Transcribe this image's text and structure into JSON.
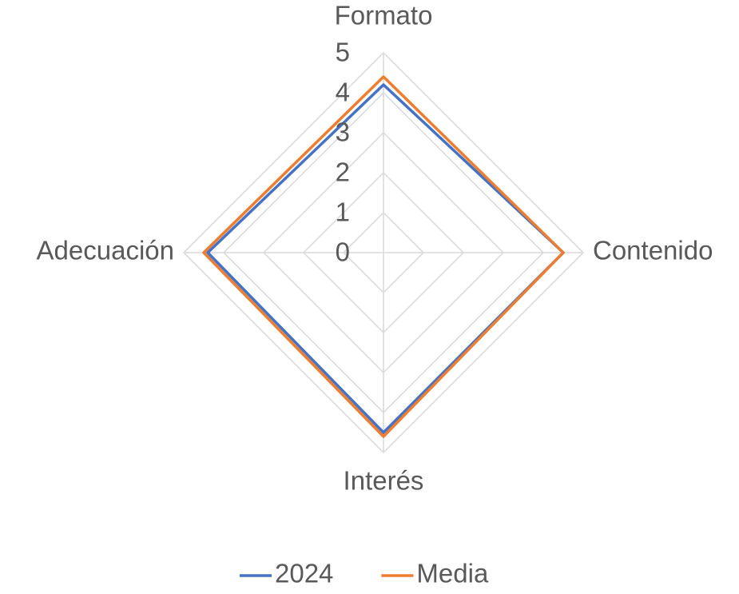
{
  "chart_data": {
    "type": "radar",
    "categories": [
      "Formato",
      "Contenido",
      "Interés",
      "Adecuación"
    ],
    "series": [
      {
        "name": "2024",
        "color": "#4472c4",
        "values": [
          4.2,
          4.5,
          4.5,
          4.4
        ]
      },
      {
        "name": "Media",
        "color": "#ed7d31",
        "values": [
          4.4,
          4.5,
          4.6,
          4.5
        ]
      }
    ],
    "ylim": [
      0,
      5
    ],
    "yticks": [
      0,
      1,
      2,
      3,
      4,
      5
    ],
    "grid": true,
    "legend": "bottom"
  }
}
